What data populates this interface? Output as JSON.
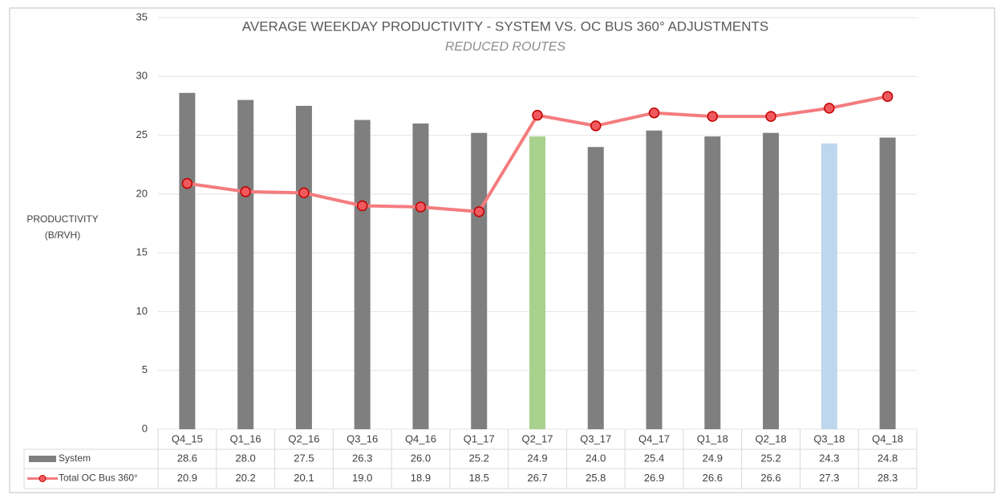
{
  "chart_data": {
    "type": "bar_line",
    "title": "AVERAGE WEEKDAY PRODUCTIVITY  - SYSTEM VS. OC BUS 360° ADJUSTMENTS",
    "subtitle": "REDUCED ROUTES",
    "ylabel": [
      "PRODUCTIVITY",
      "(B/RVH)"
    ],
    "categories": [
      "Q4_15",
      "Q1_16",
      "Q2_16",
      "Q3_16",
      "Q4_16",
      "Q1_17",
      "Q2_17",
      "Q3_17",
      "Q4_17",
      "Q1_18",
      "Q2_18",
      "Q3_18",
      "Q4_18"
    ],
    "series": [
      {
        "name": "System",
        "type": "bar",
        "color": "#7f7f7f",
        "colors": [
          "#7f7f7f",
          "#7f7f7f",
          "#7f7f7f",
          "#7f7f7f",
          "#7f7f7f",
          "#7f7f7f",
          "#a9d18e",
          "#7f7f7f",
          "#7f7f7f",
          "#7f7f7f",
          "#7f7f7f",
          "#bdd7ee",
          "#7f7f7f"
        ],
        "values": [
          28.6,
          28.0,
          27.5,
          26.3,
          26.0,
          25.2,
          24.9,
          24.0,
          25.4,
          24.9,
          25.2,
          24.3,
          24.8
        ],
        "value_labels": [
          "28.6",
          "28.0",
          "27.5",
          "26.3",
          "26.0",
          "25.2",
          "24.9",
          "24.0",
          "25.4",
          "24.9",
          "25.2",
          "24.3",
          "24.8"
        ]
      },
      {
        "name": "Total OC Bus 360°",
        "type": "line",
        "color": "#f47c7f",
        "marker_color": "#f05a5e",
        "values": [
          20.9,
          20.2,
          20.1,
          19.0,
          18.9,
          18.5,
          26.7,
          25.8,
          26.9,
          26.6,
          26.6,
          27.3,
          28.3
        ],
        "value_labels": [
          "20.9",
          "20.2",
          "20.1",
          "19.0",
          "18.9",
          "18.5",
          "26.7",
          "25.8",
          "26.9",
          "26.6",
          "26.6",
          "27.3",
          "28.3"
        ]
      }
    ],
    "ylim": [
      0,
      35
    ],
    "yticks": [
      0,
      5,
      10,
      15,
      20,
      25,
      30,
      35
    ],
    "grid": true
  }
}
